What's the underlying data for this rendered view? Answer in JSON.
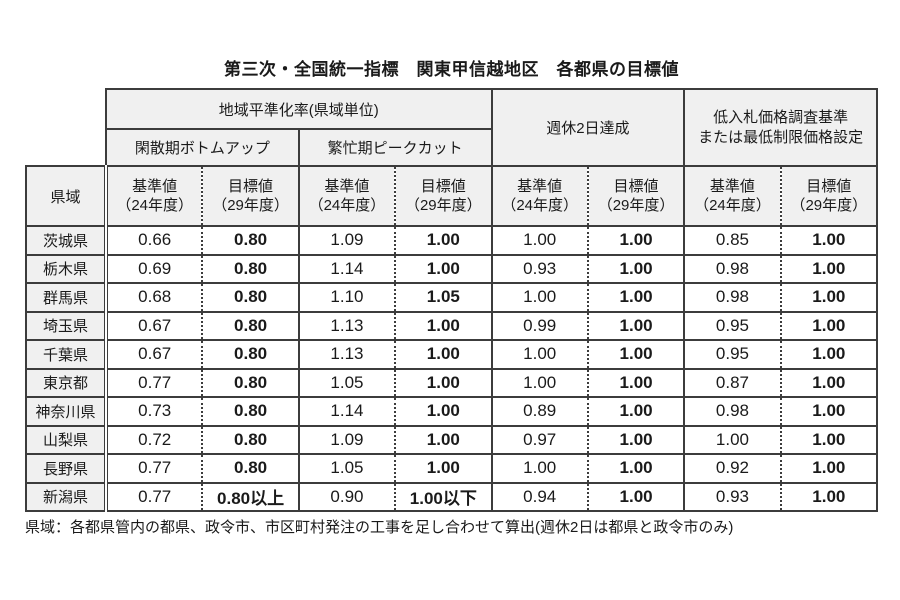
{
  "title": "第三次・全国統一指標　関東甲信越地区　各都県の目標値",
  "colors": {
    "header_bg": "#f0f0f0",
    "border": "#3c3c3c",
    "text": "#1a1a1a",
    "page_bg": "#ffffff"
  },
  "table": {
    "group_headers": {
      "regional_leveling": "地域平準化率(県域単位)",
      "off_peak_bottom_up": "閑散期ボトムアップ",
      "peak_cut": "繁忙期ピークカット",
      "two_day_weekend": "週休2日達成",
      "low_bid_line1": "低入札価格調査基準",
      "low_bid_line2": "または最低制限価格設定"
    },
    "col_headers": {
      "prefecture": "県域",
      "base_line1": "基準値",
      "base_line2": "（24年度）",
      "goal_line1": "目標値",
      "goal_line2": "（29年度）"
    },
    "rows": [
      {
        "pref": "茨城県",
        "values": [
          "0.66",
          "0.80",
          "1.09",
          "1.00",
          "1.00",
          "1.00",
          "0.85",
          "1.00"
        ]
      },
      {
        "pref": "栃木県",
        "values": [
          "0.69",
          "0.80",
          "1.14",
          "1.00",
          "0.93",
          "1.00",
          "0.98",
          "1.00"
        ]
      },
      {
        "pref": "群馬県",
        "values": [
          "0.68",
          "0.80",
          "1.10",
          "1.05",
          "1.00",
          "1.00",
          "0.98",
          "1.00"
        ]
      },
      {
        "pref": "埼玉県",
        "values": [
          "0.67",
          "0.80",
          "1.13",
          "1.00",
          "0.99",
          "1.00",
          "0.95",
          "1.00"
        ]
      },
      {
        "pref": "千葉県",
        "values": [
          "0.67",
          "0.80",
          "1.13",
          "1.00",
          "1.00",
          "1.00",
          "0.95",
          "1.00"
        ]
      },
      {
        "pref": "東京都",
        "values": [
          "0.77",
          "0.80",
          "1.05",
          "1.00",
          "1.00",
          "1.00",
          "0.87",
          "1.00"
        ]
      },
      {
        "pref": "神奈川県",
        "values": [
          "0.73",
          "0.80",
          "1.14",
          "1.00",
          "0.89",
          "1.00",
          "0.98",
          "1.00"
        ]
      },
      {
        "pref": "山梨県",
        "values": [
          "0.72",
          "0.80",
          "1.09",
          "1.00",
          "0.97",
          "1.00",
          "1.00",
          "1.00"
        ]
      },
      {
        "pref": "長野県",
        "values": [
          "0.77",
          "0.80",
          "1.05",
          "1.00",
          "1.00",
          "1.00",
          "0.92",
          "1.00"
        ]
      },
      {
        "pref": "新潟県",
        "values": [
          "0.77",
          "0.80以上",
          "0.90",
          "1.00以下",
          "0.94",
          "1.00",
          "0.93",
          "1.00"
        ]
      }
    ]
  },
  "footnote": "県域：各都県管内の都県、政令市、市区町村発注の工事を足し合わせて算出(週休2日は都県と政令市のみ)"
}
